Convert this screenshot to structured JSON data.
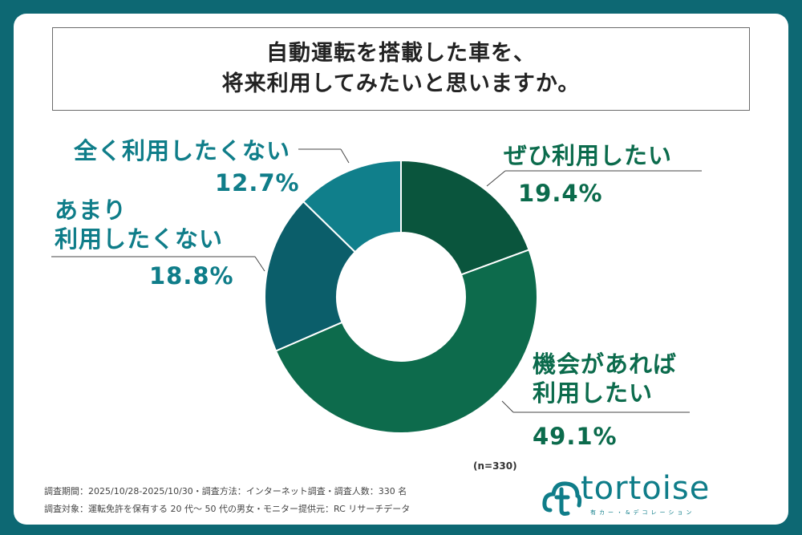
{
  "title": {
    "line1": "自動運転を搭載した車を、",
    "line2": "将来利用してみたいと思いますか。"
  },
  "chart_data": {
    "type": "pie",
    "style": "donut",
    "title": "自動運転を搭載した車を、将来利用してみたいと思いますか。",
    "sample": "(n=330)",
    "slices": [
      {
        "label": "ぜひ利用したい",
        "value": 19.4,
        "value_label": "19.4%",
        "color": "#0a553d"
      },
      {
        "label": "機会があれば利用したい",
        "value": 49.1,
        "value_label": "49.1%",
        "color": "#0d6b4c"
      },
      {
        "label": "あまり利用したくない",
        "value": 18.8,
        "value_label": "18.8%",
        "color": "#0b5e6a"
      },
      {
        "label": "全く利用したくない",
        "value": 12.7,
        "value_label": "12.7%",
        "color": "#107f8b"
      }
    ]
  },
  "labels": {
    "zehi": "ぜひ利用したい",
    "kikai_line1": "機会があれば",
    "kikai_line2": "利用したい",
    "amari_line1": "あまり",
    "amari_line2": "利用したくない",
    "mattaku": "全く利用したくない"
  },
  "footer": {
    "line1": "調査期間：2025/10/28-2025/10/30・調査方法：インターネット調査・調査人数：330 名",
    "line2": "調査対象：運転免許を保有する 20 代〜 50 代の男女・モニター提供元：RC リサーチデータ"
  },
  "logo": {
    "word": "tortoise",
    "sub": "有カー・&デコレーション"
  },
  "colors": {
    "background": "#0d6873",
    "teal_text": "#0f7d89",
    "green_text": "#0b6b4c"
  }
}
